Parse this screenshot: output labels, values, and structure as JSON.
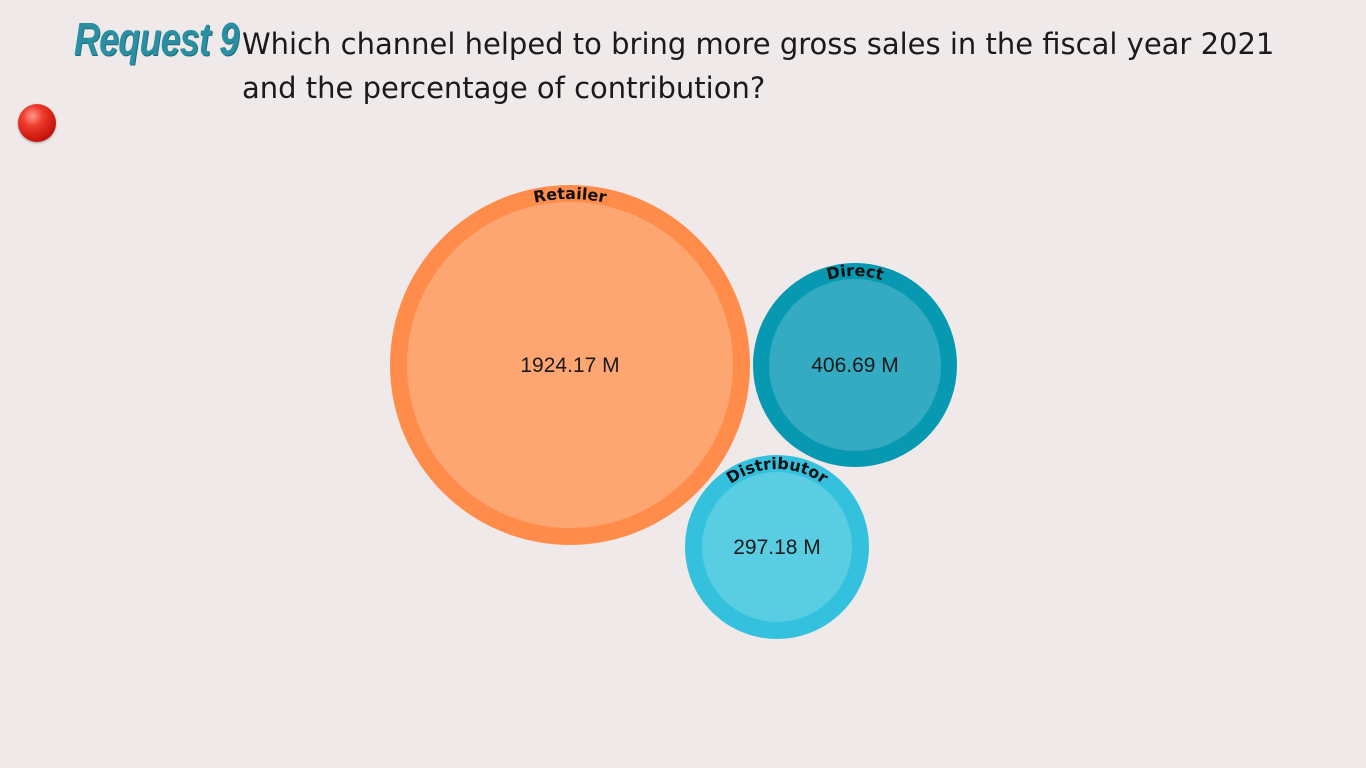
{
  "header": {
    "request_label": "Request 9",
    "question_line1": "Which channel helped to bring more gross sales in the fiscal year 2021",
    "question_line2": "and the percentage of contribution?"
  },
  "chart_data": {
    "type": "bubble",
    "title": "",
    "series": [
      {
        "name": "Retailer",
        "value": 1924.17,
        "value_label": "1924.17 M",
        "outer_color": "#ff8c4b",
        "inner_color": "#fea671"
      },
      {
        "name": "Direct",
        "value": 406.69,
        "value_label": "406.69 M",
        "outer_color": "#0799b1",
        "inner_color": "#34abc3"
      },
      {
        "name": "Distributor",
        "value": 297.18,
        "value_label": "297.18 M",
        "outer_color": "#33c1dd",
        "inner_color": "#59cee3"
      }
    ]
  }
}
